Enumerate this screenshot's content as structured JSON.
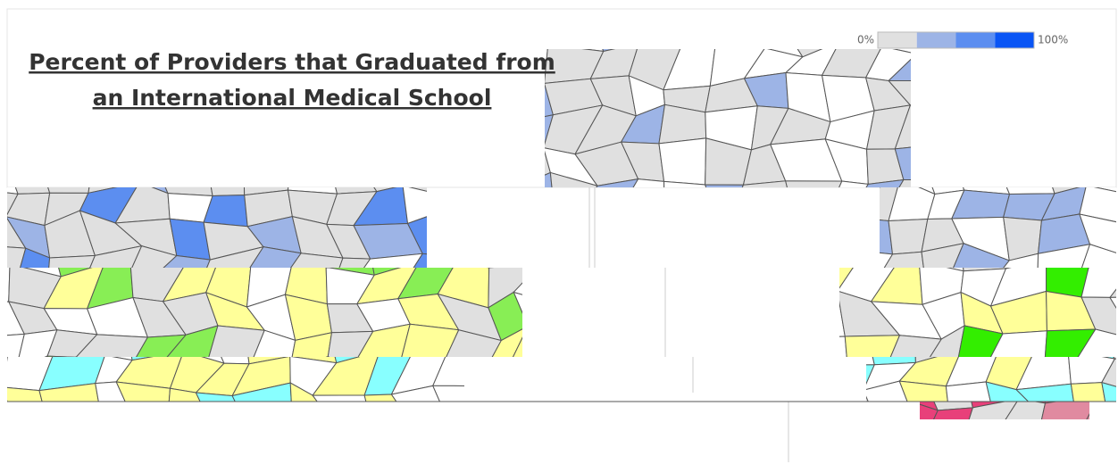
{
  "title": {
    "lines": [
      "Percent of Providers that Graduated from",
      "an International Medical School"
    ]
  },
  "legend": {
    "min_label": "0%",
    "max_label": "100%",
    "colors": [
      "#e0e0e0",
      "#9db4e6",
      "#5c8ef0",
      "#0a55f5"
    ]
  }
}
